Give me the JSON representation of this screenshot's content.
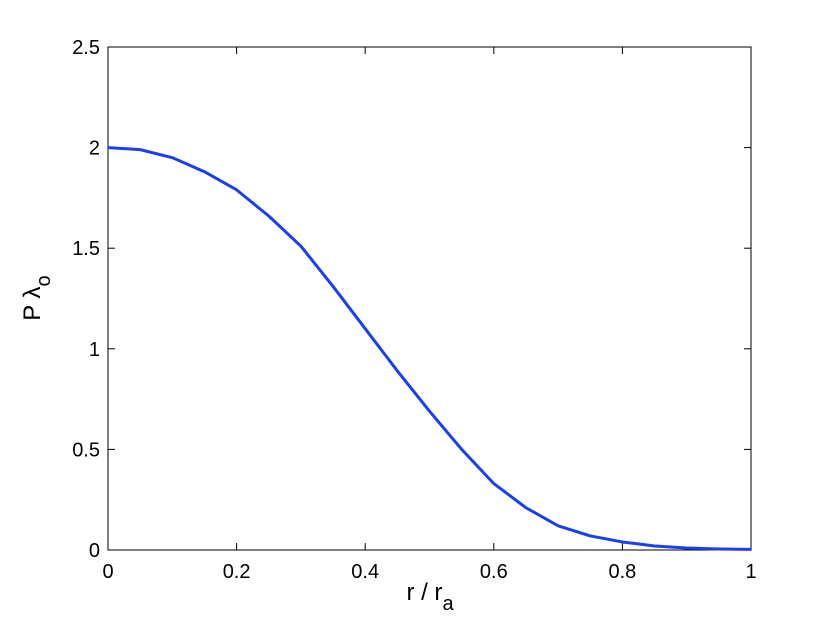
{
  "chart_data": {
    "type": "line",
    "xlabel": "r / r",
    "xlabel_sub": "a",
    "ylabel": "P λ",
    "ylabel_sub": "o",
    "x": [
      0,
      0.05,
      0.1,
      0.15,
      0.2,
      0.25,
      0.3,
      0.35,
      0.4,
      0.45,
      0.5,
      0.55,
      0.6,
      0.65,
      0.7,
      0.75,
      0.8,
      0.85,
      0.9,
      0.95,
      1.0
    ],
    "series": [
      {
        "color": "#1a3ff0",
        "values": [
          2.0,
          1.99,
          1.95,
          1.88,
          1.79,
          1.66,
          1.51,
          1.31,
          1.1,
          0.89,
          0.69,
          0.5,
          0.33,
          0.21,
          0.12,
          0.07,
          0.04,
          0.02,
          0.01,
          0.005,
          0.003
        ]
      }
    ],
    "xlim": [
      0,
      1
    ],
    "xticks": [
      0,
      0.2,
      0.4,
      0.6,
      0.8,
      1
    ],
    "ylim": [
      0,
      2.5
    ],
    "yticks": [
      0,
      0.5,
      1,
      1.5,
      2,
      2.5
    ],
    "grid": false
  }
}
